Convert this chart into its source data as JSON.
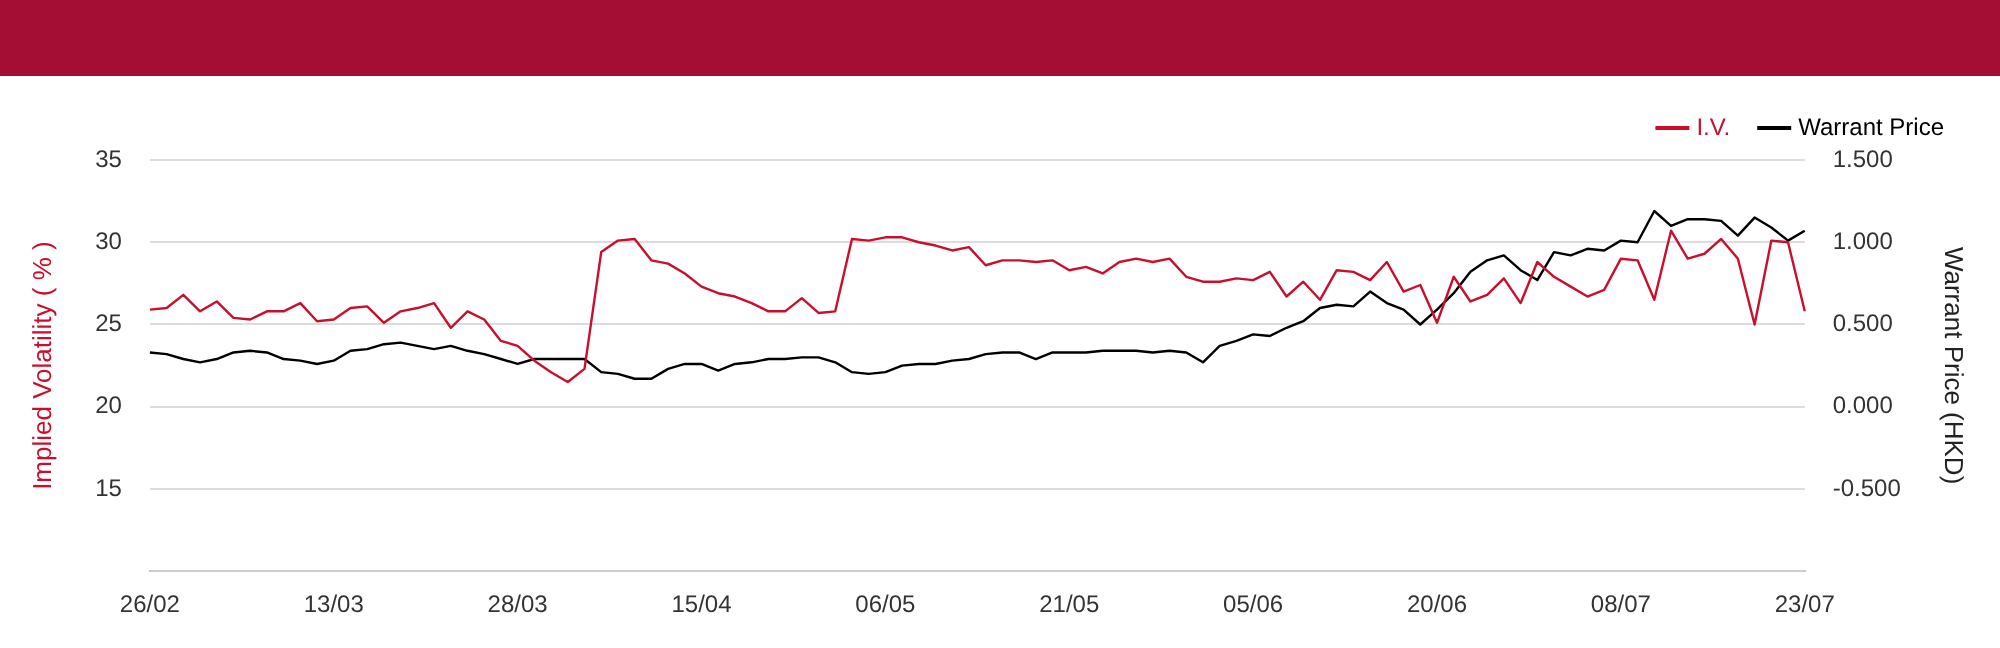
{
  "chart_data": {
    "type": "line",
    "ylabel": "Implied Volatility ( % )",
    "y2label": "Warrant Price (HKD)",
    "categories": [
      "26/02",
      null,
      null,
      null,
      null,
      null,
      null,
      null,
      null,
      null,
      null,
      "13/03",
      null,
      null,
      null,
      null,
      null,
      null,
      null,
      null,
      null,
      null,
      "28/03",
      null,
      null,
      null,
      null,
      null,
      null,
      null,
      null,
      null,
      null,
      "15/04",
      null,
      null,
      null,
      null,
      null,
      null,
      null,
      null,
      null,
      null,
      "06/05",
      null,
      null,
      null,
      null,
      null,
      null,
      null,
      null,
      null,
      null,
      "21/05",
      null,
      null,
      null,
      null,
      null,
      null,
      null,
      null,
      null,
      null,
      "05/06",
      null,
      null,
      null,
      null,
      null,
      null,
      null,
      null,
      null,
      null,
      "20/06",
      null,
      null,
      null,
      null,
      null,
      null,
      null,
      null,
      null,
      null,
      "08/07",
      null,
      null,
      null,
      null,
      null,
      null,
      null,
      null,
      null,
      null,
      "23/07"
    ],
    "series": [
      {
        "name": "I.V.",
        "color": "#c8102e",
        "values": [
          25.9,
          26.0,
          26.8,
          25.8,
          26.4,
          25.4,
          25.3,
          25.8,
          25.8,
          26.3,
          25.2,
          25.3,
          26.0,
          26.1,
          25.1,
          25.8,
          26.0,
          26.3,
          24.8,
          25.8,
          25.3,
          24.0,
          23.7,
          22.8,
          22.1,
          21.5,
          22.3,
          29.4,
          30.1,
          30.2,
          28.9,
          28.7,
          28.1,
          27.3,
          26.9,
          26.7,
          26.3,
          25.8,
          25.8,
          26.6,
          25.7,
          25.8,
          30.2,
          30.1,
          30.3,
          30.3,
          30.0,
          29.8,
          29.5,
          29.7,
          28.6,
          28.9,
          28.9,
          28.8,
          28.9,
          28.3,
          28.5,
          28.1,
          28.8,
          29.0,
          28.8,
          29.0,
          27.9,
          27.6,
          27.6,
          27.8,
          27.7,
          28.2,
          26.7,
          27.6,
          26.5,
          28.3,
          28.2,
          27.7,
          28.8,
          27.0,
          27.4,
          25.1,
          27.9,
          26.4,
          26.8,
          27.8,
          26.3,
          28.8,
          27.9,
          27.3,
          26.7,
          27.1,
          29.0,
          28.9,
          26.5,
          30.7,
          29.0,
          29.3,
          30.2,
          29.0,
          25.0,
          30.1,
          30.0,
          25.8
        ]
      },
      {
        "name": "Warrant Price",
        "color": "#000000",
        "axis": "y2",
        "values": [
          0.33,
          0.32,
          0.29,
          0.27,
          0.29,
          0.33,
          0.34,
          0.33,
          0.29,
          0.28,
          0.26,
          0.28,
          0.34,
          0.35,
          0.38,
          0.39,
          0.37,
          0.35,
          0.37,
          0.34,
          0.32,
          0.29,
          0.26,
          0.29,
          0.29,
          0.29,
          0.29,
          0.21,
          0.2,
          0.17,
          0.17,
          0.23,
          0.26,
          0.26,
          0.22,
          0.26,
          0.27,
          0.29,
          0.29,
          0.3,
          0.3,
          0.27,
          0.21,
          0.2,
          0.21,
          0.25,
          0.26,
          0.26,
          0.28,
          0.29,
          0.32,
          0.33,
          0.33,
          0.29,
          0.33,
          0.33,
          0.33,
          0.34,
          0.34,
          0.34,
          0.33,
          0.34,
          0.33,
          0.27,
          0.37,
          0.4,
          0.44,
          0.43,
          0.48,
          0.52,
          0.6,
          0.62,
          0.61,
          0.7,
          0.63,
          0.59,
          0.5,
          0.59,
          0.69,
          0.82,
          0.89,
          0.92,
          0.83,
          0.77,
          0.94,
          0.92,
          0.96,
          0.95,
          1.01,
          1.0,
          1.19,
          1.1,
          1.14,
          1.14,
          1.13,
          1.04,
          1.15,
          1.09,
          1.01,
          1.07
        ]
      }
    ],
    "ylim": [
      10,
      35
    ],
    "yticks": [
      15,
      20,
      25,
      30,
      35
    ],
    "y2lim": [
      -1,
      1.5
    ],
    "y2ticks": [
      {
        "value": -0.5,
        "label": "-0.500"
      },
      {
        "value": 0,
        "label": "0.000"
      },
      {
        "value": 0.5,
        "label": "0.500"
      },
      {
        "value": 1,
        "label": "1.000"
      },
      {
        "value": 1.5,
        "label": "1.500"
      }
    ],
    "grid": "y",
    "legend": "top right"
  }
}
